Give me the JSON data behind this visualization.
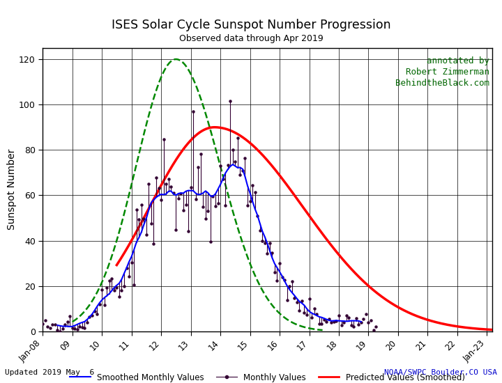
{
  "title": "ISES Solar Cycle Sunspot Number Progression",
  "subtitle": "Observed data through Apr 2019",
  "ylabel": "Sunspot Number",
  "annotation": "annotated by\nRobert Zimmerman\nBehindtheBlack.com",
  "footer_left": "Updated 2019 May  6",
  "footer_right": "NOAA/SWPC Boulder,CO USA",
  "bg_color": "#ffffff",
  "grid_color": "#888888",
  "title_color": "#000000",
  "footer_right_color": "#0000cc",
  "annotation_color": "#006600",
  "xlim_start": 2008.0,
  "xlim_end": 2023.17,
  "ylim": [
    0,
    125
  ],
  "yticks": [
    0,
    20,
    40,
    60,
    80,
    100,
    120
  ],
  "xtick_years": [
    2008.0,
    2009.0,
    2010.0,
    2011.0,
    2012.0,
    2013.0,
    2014.0,
    2015.0,
    2016.0,
    2017.0,
    2018.0,
    2019.0,
    2020.0,
    2021.0,
    2022.0,
    2023.0
  ],
  "xtick_labels": [
    "Jan-08",
    "09",
    "10",
    "11",
    "12",
    "13",
    "14",
    "15",
    "16",
    "17",
    "18",
    "19",
    "20",
    "21",
    "22",
    "Jan-23"
  ],
  "smoothed_color": "#0000ff",
  "smoothed_lw": 1.5,
  "monthly_color": "#330033",
  "predicted_color": "#ff0000",
  "predicted_lw": 2.5,
  "green_color": "#008800",
  "green_lw": 1.8,
  "legend_smoothed_label": "Smoothed Monthly Values",
  "legend_monthly_label": "Monthly Values",
  "legend_predicted_label": "Predicted Values (Smoothed)"
}
